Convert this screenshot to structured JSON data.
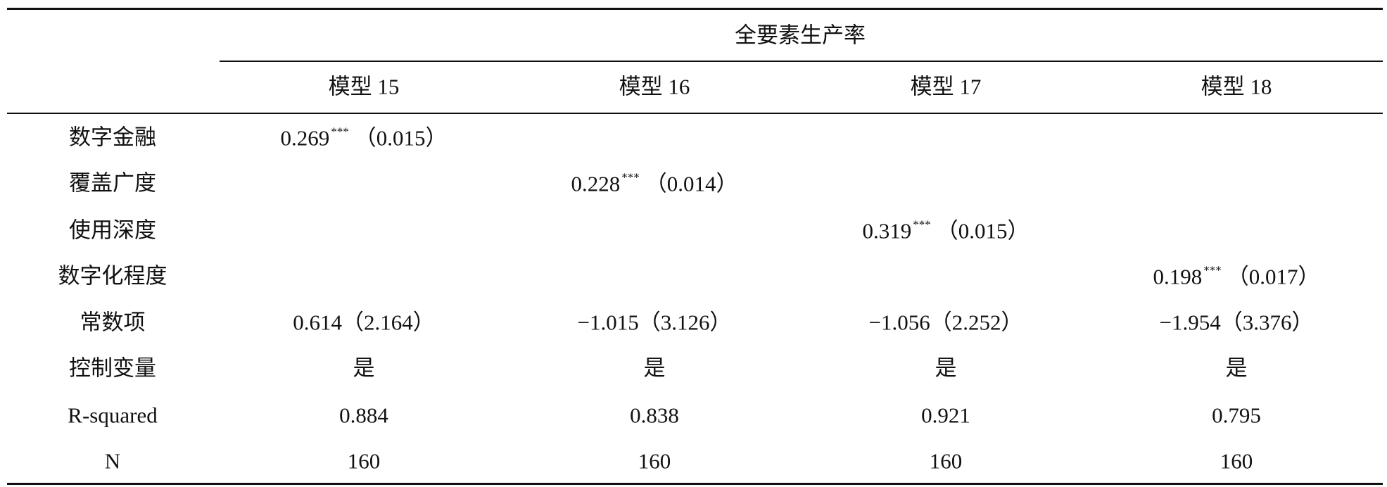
{
  "table": {
    "group_header": "全要素生产率",
    "columns": [
      "模型 15",
      "模型 16",
      "模型 17",
      "模型 18"
    ],
    "rows": [
      {
        "label": "数字金融",
        "cells": [
          {
            "estimate": "0.269",
            "stars": "***",
            "se": "（0.015）"
          },
          null,
          null,
          null
        ]
      },
      {
        "label": "覆盖广度",
        "cells": [
          null,
          {
            "estimate": "0.228",
            "stars": "***",
            "se": "（0.014）"
          },
          null,
          null
        ]
      },
      {
        "label": "使用深度",
        "cells": [
          null,
          null,
          {
            "estimate": "0.319",
            "stars": "***",
            "se": "（0.015）"
          },
          null
        ]
      },
      {
        "label": "数字化程度",
        "cells": [
          null,
          null,
          null,
          {
            "estimate": "0.198",
            "stars": "***",
            "se": "（0.017）"
          }
        ]
      },
      {
        "label": "常数项",
        "cells": [
          {
            "estimate": "0.614",
            "se": "（2.164）"
          },
          {
            "estimate": "−1.015",
            "se": "（3.126）"
          },
          {
            "estimate": "−1.056",
            "se": "（2.252）"
          },
          {
            "estimate": "−1.954",
            "se": "（3.376）"
          }
        ]
      },
      {
        "label": "控制变量",
        "cells": [
          "是",
          "是",
          "是",
          "是"
        ]
      },
      {
        "label": "R-squared",
        "cells": [
          "0.884",
          "0.838",
          "0.921",
          "0.795"
        ]
      },
      {
        "label": "N",
        "cells": [
          "160",
          "160",
          "160",
          "160"
        ]
      }
    ]
  }
}
